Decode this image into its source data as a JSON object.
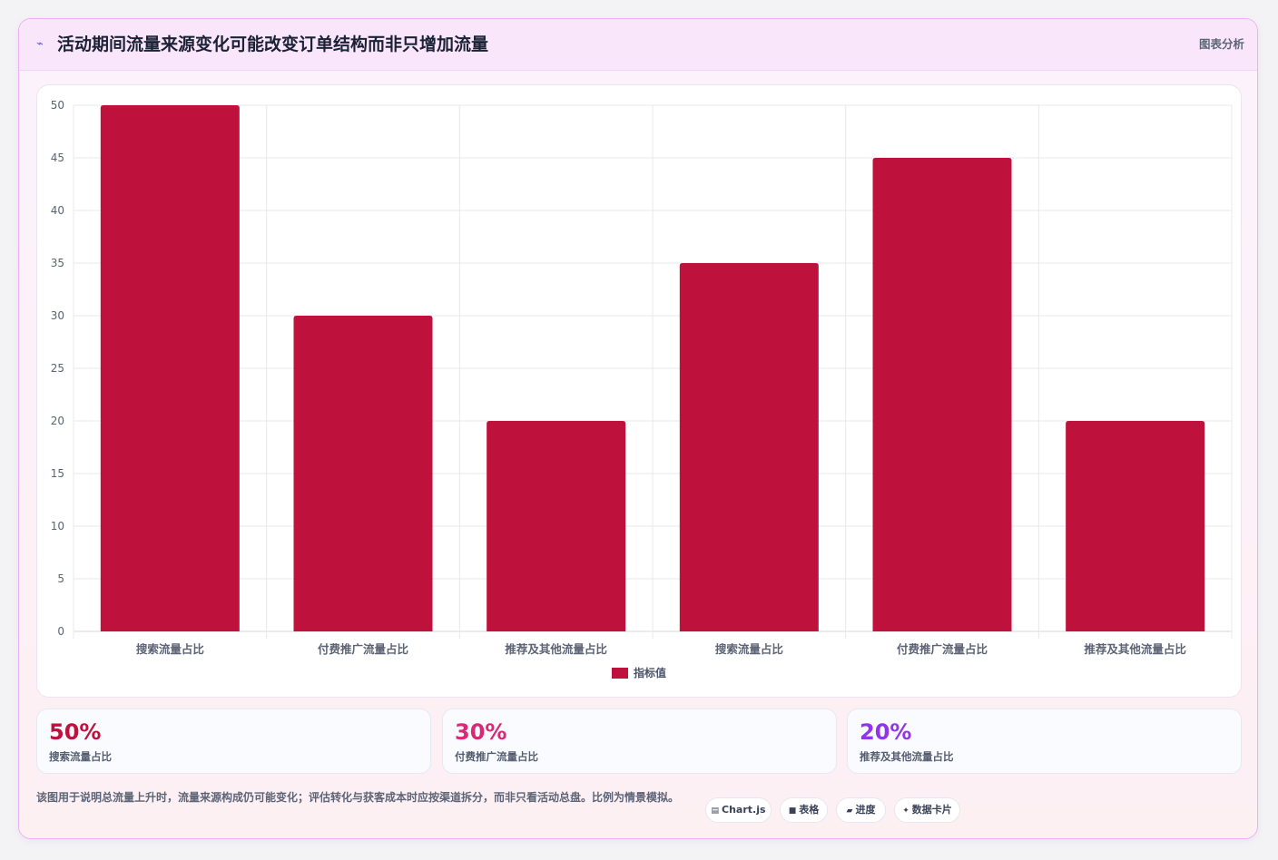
{
  "header": {
    "icon": "trend-line-icon",
    "title": "活动期间流量来源变化可能改变订单结构而非只增加流量",
    "tag": "图表分析"
  },
  "chart_data": {
    "type": "bar",
    "categories": [
      "搜索流量占比",
      "付费推广流量占比",
      "推荐及其他流量占比",
      "搜索流量占比",
      "付费推广流量占比",
      "推荐及其他流量占比"
    ],
    "series": [
      {
        "name": "指标值",
        "values": [
          50,
          30,
          20,
          35,
          45,
          20
        ],
        "color": "#be123c"
      }
    ],
    "ylim": [
      0,
      50
    ],
    "yticks": [
      0,
      5,
      10,
      15,
      20,
      25,
      30,
      35,
      40,
      45,
      50
    ],
    "grid": true,
    "legend": "bottom-center"
  },
  "stats": [
    {
      "value": "50%",
      "label": "搜索流量占比",
      "color": "#be123c"
    },
    {
      "value": "30%",
      "label": "付费推广流量占比",
      "color": "#db2777"
    },
    {
      "value": "20%",
      "label": "推荐及其他流量占比",
      "color": "#9333ea"
    }
  ],
  "note": "该图用于说明总流量上升时，流量来源构成仍可能变化；评估转化与获客成本时应按渠道拆分，而非只看活动总盘。比例为情景模拟。",
  "pills": [
    {
      "icon": "chart-icon",
      "glyph": "▤",
      "label": "Chart.js"
    },
    {
      "icon": "table-icon",
      "glyph": "■",
      "label": "表格"
    },
    {
      "icon": "progress-icon",
      "glyph": "▰",
      "label": "进度"
    },
    {
      "icon": "sparkle-icon",
      "glyph": "✦",
      "label": "数据卡片"
    }
  ]
}
